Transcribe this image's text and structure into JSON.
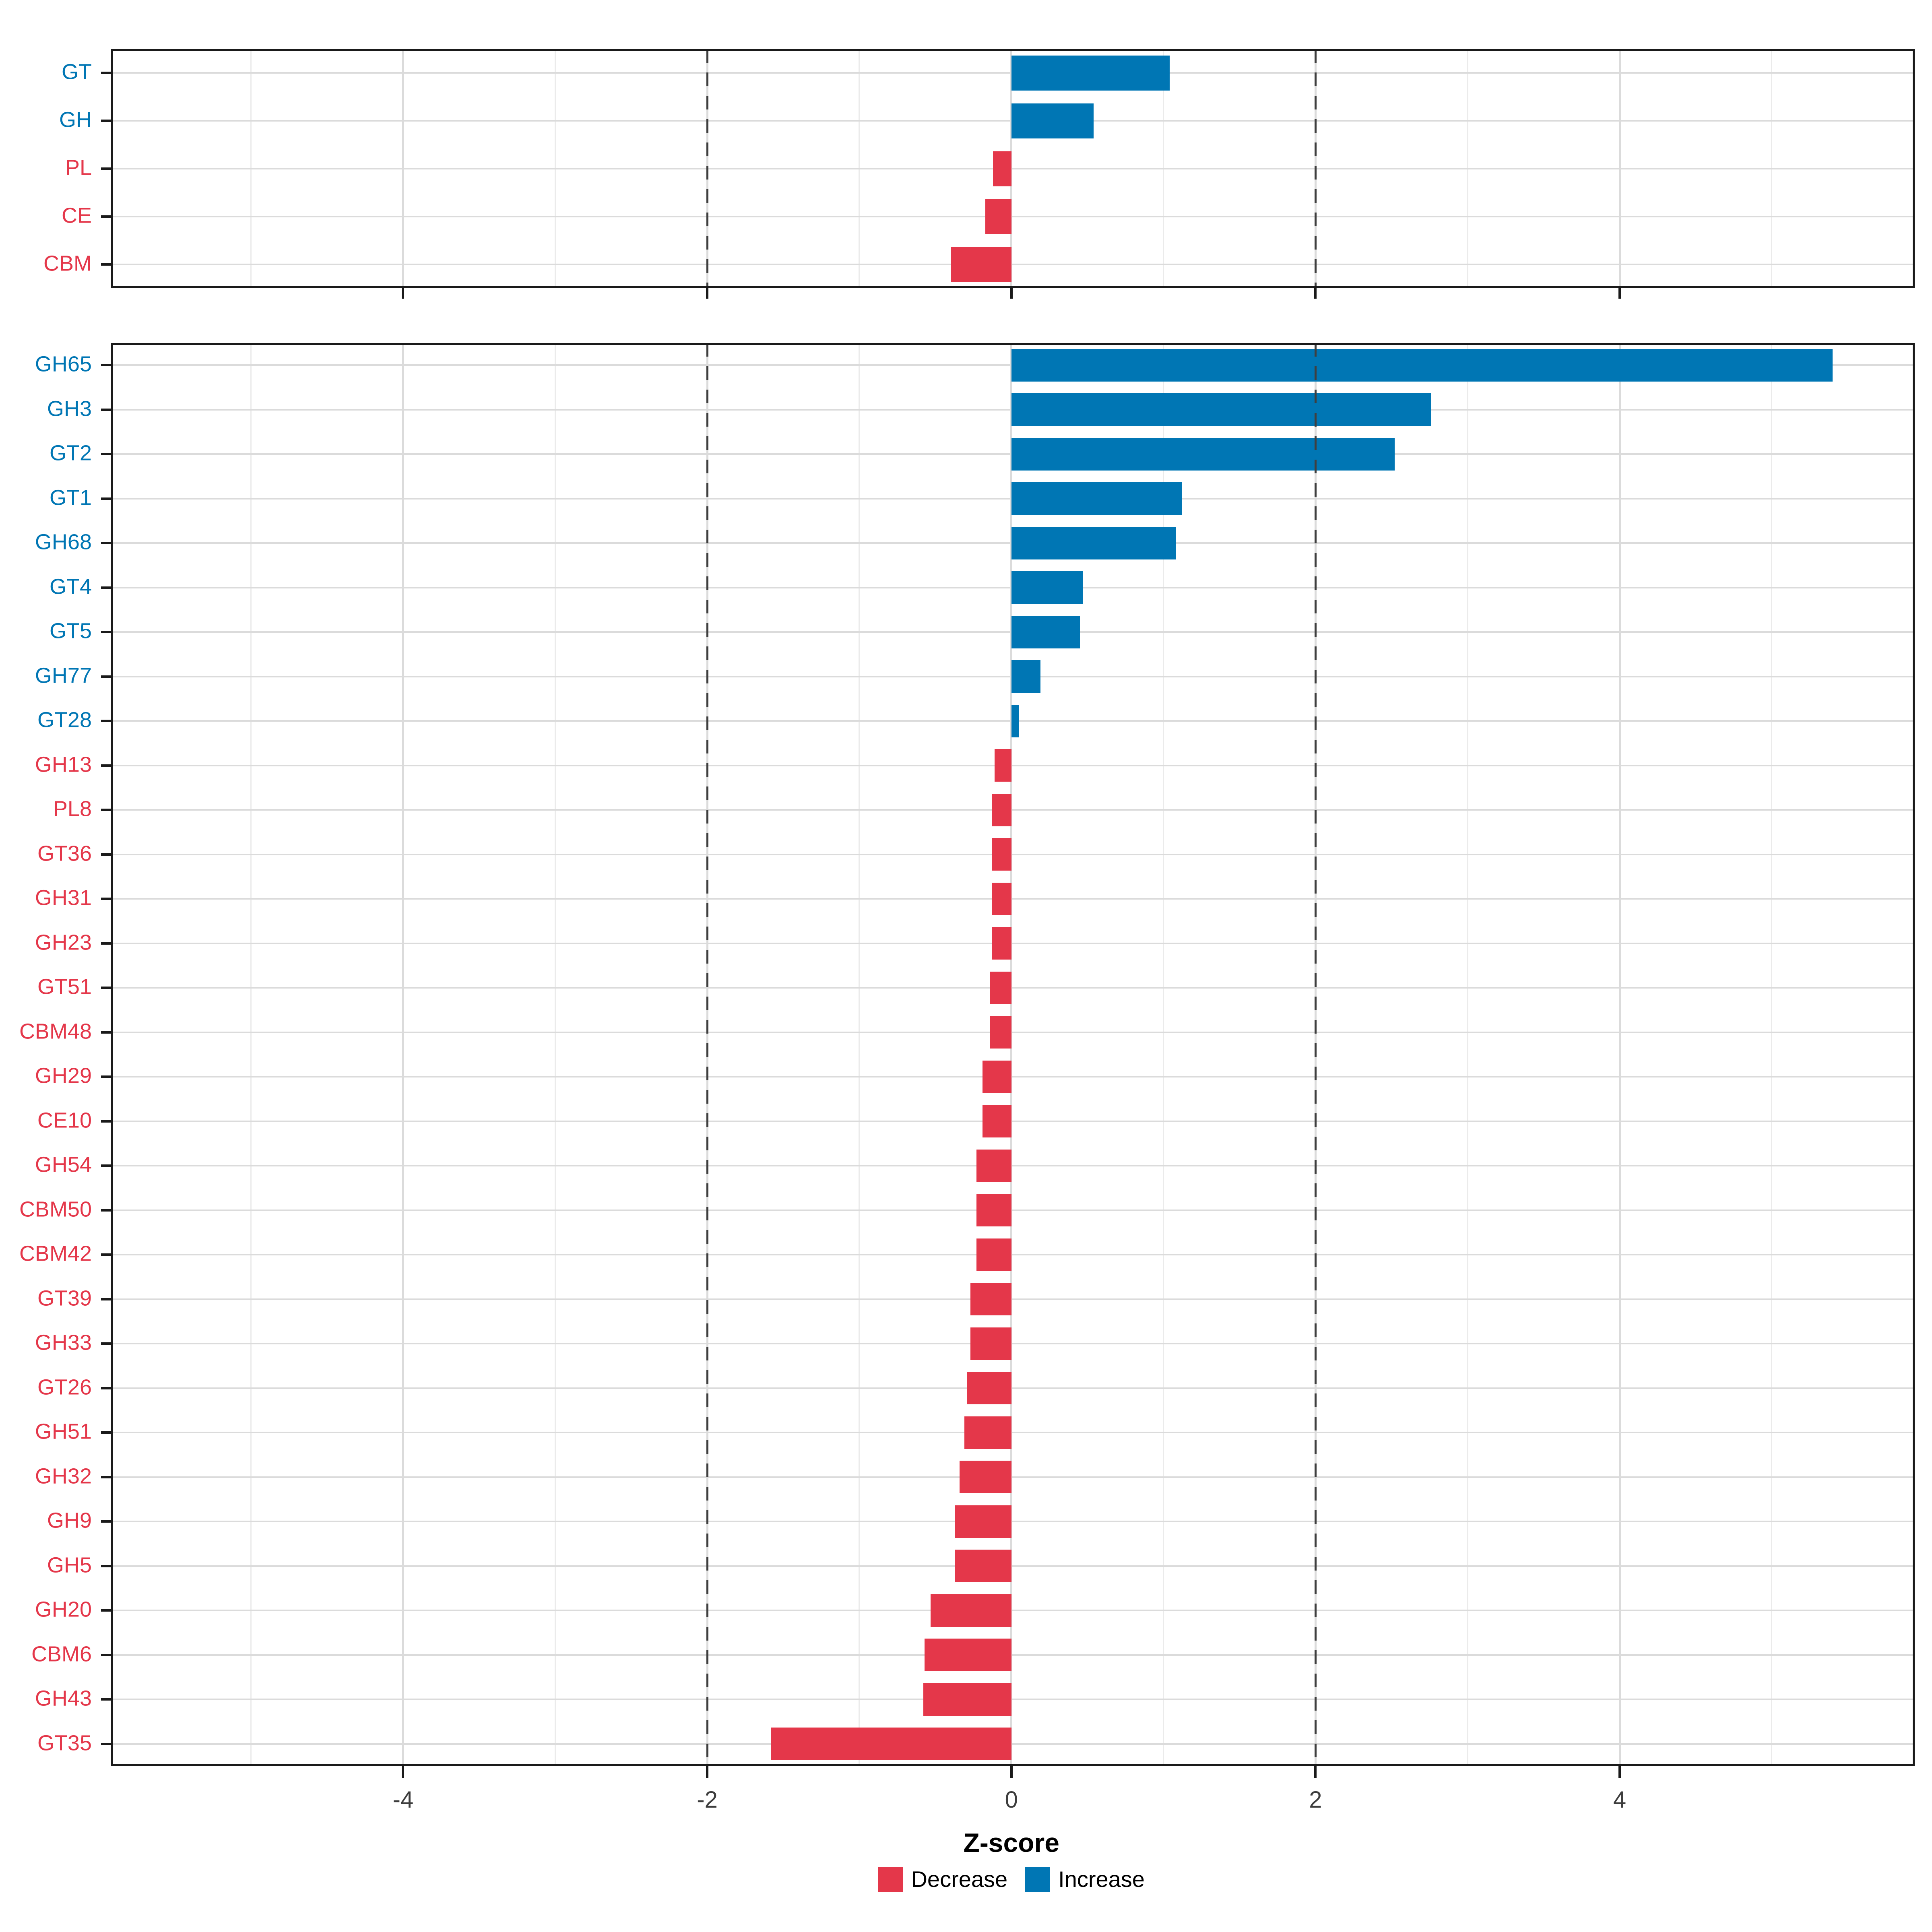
{
  "colors": {
    "increase": "#0076B4",
    "decrease": "#E4374A",
    "grid_major": "#DBDBDB",
    "grid_minor": "#EBEBEB",
    "dashed_line": "#3F3F3F",
    "panel_border": "#1A1A1A",
    "axis_text": "#3D3D3D",
    "background": "#FFFFFF"
  },
  "axis": {
    "title": "Z-score",
    "tick_values": [
      -4,
      -2,
      0,
      2,
      4
    ],
    "tick_labels": [
      "-4",
      "-2",
      "0",
      "2",
      "4"
    ],
    "gridline_values": [
      -5,
      -4,
      -3,
      -2,
      -1,
      0,
      1,
      2,
      3,
      4,
      5
    ],
    "dashed_lines": [
      -2,
      2
    ],
    "xlim": [
      -5.92,
      5.94
    ]
  },
  "legend": {
    "items": [
      {
        "label": "Decrease",
        "color_key": "decrease"
      },
      {
        "label": "Increase",
        "color_key": "increase"
      }
    ]
  },
  "chart_data": [
    {
      "type": "bar",
      "orientation": "horizontal",
      "panel": "top",
      "xlabel": "Z-score",
      "categories": [
        "GT",
        "GH",
        "PL",
        "CE",
        "CBM"
      ],
      "values": [
        1.04,
        0.54,
        -0.12,
        -0.17,
        -0.4
      ],
      "color_rule": "value >= 0 ? increase : decrease",
      "label_color_rule": "value >= 0 ? increase : decrease",
      "grid": true
    },
    {
      "type": "bar",
      "orientation": "horizontal",
      "panel": "main",
      "xlabel": "Z-score",
      "categories": [
        "GH65",
        "GH3",
        "GT2",
        "GT1",
        "GH68",
        "GT4",
        "GT5",
        "GH77",
        "GT28",
        "GH13",
        "PL8",
        "GT36",
        "GH31",
        "GH23",
        "GT51",
        "CBM48",
        "GH29",
        "CE10",
        "GH54",
        "CBM50",
        "CBM42",
        "GT39",
        "GH33",
        "GT26",
        "GH51",
        "GH32",
        "GH9",
        "GH5",
        "GH20",
        "CBM6",
        "GH43",
        "GT35"
      ],
      "values": [
        5.4,
        2.76,
        2.52,
        1.12,
        1.08,
        0.47,
        0.45,
        0.19,
        0.05,
        -0.11,
        -0.13,
        -0.13,
        -0.13,
        -0.13,
        -0.14,
        -0.14,
        -0.19,
        -0.19,
        -0.23,
        -0.23,
        -0.23,
        -0.27,
        -0.27,
        -0.29,
        -0.31,
        -0.34,
        -0.37,
        -0.37,
        -0.53,
        -0.57,
        -0.58,
        -1.58
      ],
      "color_rule": "value >= 0 ? increase : decrease",
      "label_color_rule": "value >= 0 ? increase : decrease",
      "grid": true
    }
  ]
}
